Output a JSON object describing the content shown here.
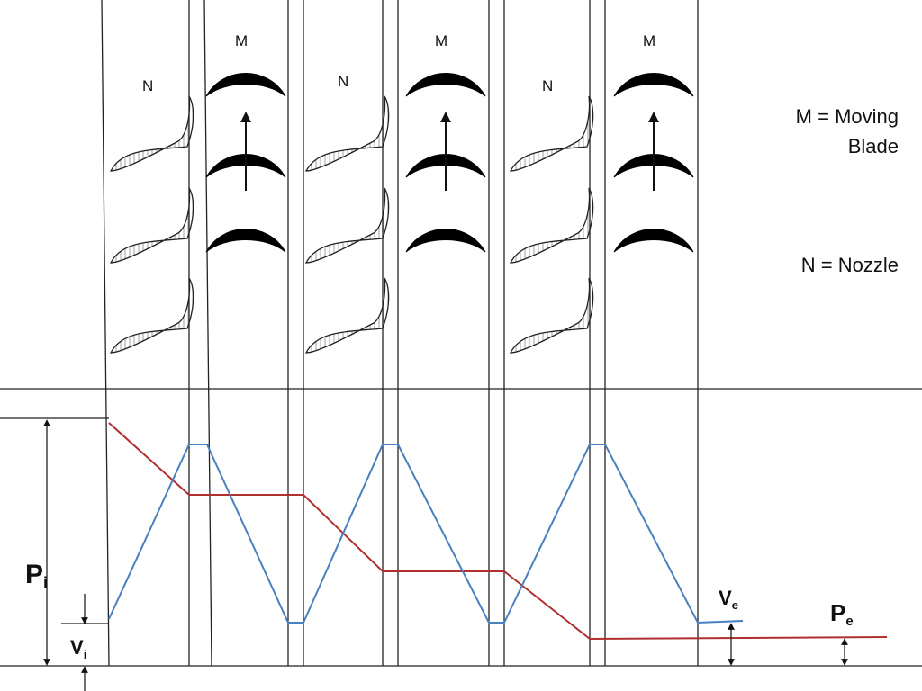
{
  "diagram": {
    "stage_labels": {
      "nozzle": "N",
      "moving": "M"
    },
    "legend": {
      "moving_line1": "M = Moving",
      "moving_line2": "Blade",
      "nozzle": "N = Nozzle"
    },
    "labels": {
      "inlet_pressure": "P",
      "inlet_pressure_sub": "i",
      "inlet_velocity": "V",
      "inlet_velocity_sub": "i",
      "exit_velocity": "V",
      "exit_velocity_sub": "e",
      "exit_pressure": "P",
      "exit_pressure_sub": "e"
    },
    "colors": {
      "pressure_line": "#b03030",
      "velocity_line": "#4a7fc0",
      "outline": "#222222"
    }
  }
}
